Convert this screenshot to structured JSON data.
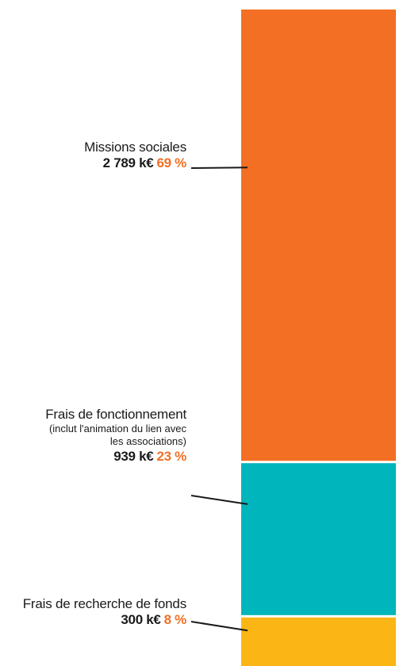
{
  "chart_data": {
    "type": "bar",
    "categories": [
      "Missions sociales",
      "Frais de fonctionnement",
      "Frais de recherche de fonds"
    ],
    "notes": [
      "",
      "(inclut l'animation du lien avec les associations)",
      ""
    ],
    "values": [
      2789,
      939,
      300
    ],
    "value_labels": [
      "2 789 k€",
      "939 k€",
      "300 k€"
    ],
    "percent_labels": [
      "69 %",
      "23 %",
      "8 %"
    ],
    "percentages": [
      69,
      23,
      8
    ],
    "colors": [
      "#f26f24",
      "#00b5bb",
      "#fbb616"
    ],
    "stacked": true
  },
  "colors": {
    "accent": "#f26f24",
    "text": "#1a1a1a"
  }
}
